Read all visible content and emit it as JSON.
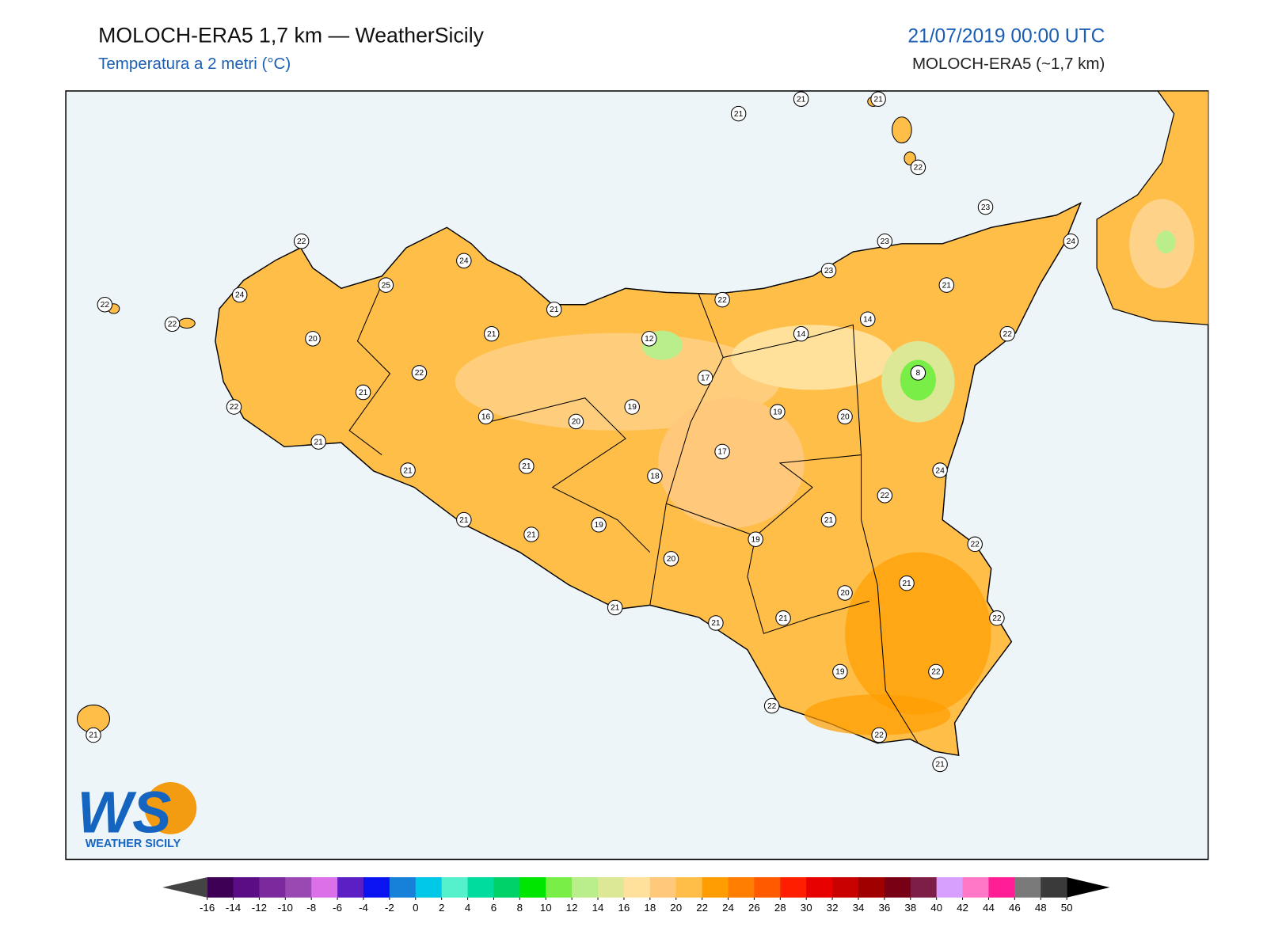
{
  "header": {
    "title": "MOLOCH-ERA5 1,7 km — WeatherSicily",
    "subtitle": "Temperatura a 2 metri (°C)",
    "date": "21/07/2019 00:00 UTC",
    "model": "MOLOCH-ERA5 (~1,7 km)"
  },
  "stations": [
    21,
    21,
    21,
    22,
    23,
    24,
    23,
    23,
    21,
    14,
    14,
    22,
    8,
    22,
    21,
    12,
    17,
    19,
    20,
    17,
    24,
    22,
    21,
    22,
    19,
    20,
    21,
    20,
    22,
    21,
    21,
    19,
    22,
    22,
    22,
    21,
    21,
    19,
    21,
    21,
    18,
    21,
    21,
    20,
    19,
    16,
    21,
    24,
    25,
    22,
    24,
    20,
    22,
    21,
    22,
    21,
    22,
    22,
    21
  ],
  "colorbar": {
    "ticks": [
      -16,
      -14,
      -12,
      -10,
      -8,
      -6,
      -4,
      -2,
      0,
      2,
      4,
      6,
      8,
      10,
      12,
      14,
      16,
      18,
      20,
      22,
      24,
      26,
      28,
      30,
      32,
      34,
      36,
      38,
      40,
      42,
      44,
      46,
      48,
      50
    ],
    "colors": [
      "#3d0054",
      "#5a0d85",
      "#7b2a9e",
      "#9a49b3",
      "#dc70e8",
      "#5b1fc4",
      "#0a14f0",
      "#1780d8",
      "#00c8e6",
      "#55f0cc",
      "#00dc9e",
      "#00d26a",
      "#00e600",
      "#78ee46",
      "#b9ee8a",
      "#dce896",
      "#ffe19b",
      "#ffc87a",
      "#ffbe48",
      "#ff9d00",
      "#ff7d00",
      "#ff5a00",
      "#ff1e00",
      "#e60000",
      "#c80000",
      "#a00000",
      "#780014",
      "#7d1e46",
      "#d7a0ff",
      "#ff78c8",
      "#ff1e96",
      "#7a7a7a",
      "#3a3a3a"
    ],
    "under": "#444444",
    "over": "#000000"
  },
  "logo": {
    "mark": "WS",
    "text": "WEATHER SICILY"
  }
}
